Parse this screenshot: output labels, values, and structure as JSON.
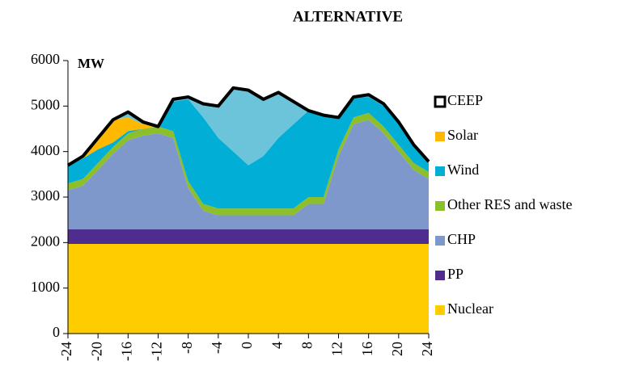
{
  "chart_data": {
    "type": "stacked_area",
    "title": "ALTERNATIVE",
    "ylabel": "MW",
    "x": [
      -24,
      -22,
      -20,
      -18,
      -16,
      -14,
      -12,
      -10,
      -8,
      -6,
      -4,
      -2,
      0,
      2,
      4,
      6,
      8,
      10,
      12,
      14,
      16,
      18,
      20,
      22,
      24
    ],
    "xlim": [
      -24,
      24
    ],
    "xticks": [
      -24,
      -20,
      -16,
      -12,
      -8,
      -4,
      0,
      4,
      8,
      12,
      16,
      20,
      24
    ],
    "ylim": [
      0,
      6000
    ],
    "yticks": [
      0,
      1000,
      2000,
      3000,
      4000,
      5000,
      6000
    ],
    "series": [
      {
        "name": "Nuclear",
        "color": "#ffcc00",
        "values": [
          1970,
          1970,
          1970,
          1970,
          1970,
          1970,
          1970,
          1970,
          1970,
          1970,
          1970,
          1970,
          1970,
          1970,
          1970,
          1970,
          1970,
          1970,
          1970,
          1970,
          1970,
          1970,
          1970,
          1970,
          1970
        ]
      },
      {
        "name": "PP",
        "color": "#4f2d8f",
        "values": [
          320,
          320,
          320,
          320,
          320,
          320,
          320,
          320,
          320,
          320,
          320,
          320,
          320,
          320,
          320,
          320,
          320,
          320,
          320,
          320,
          320,
          320,
          320,
          320,
          320
        ]
      },
      {
        "name": "CHP",
        "color": "#7f98cc",
        "values": [
          860,
          960,
          1310,
          1660,
          1960,
          2060,
          2110,
          2010,
          910,
          410,
          310,
          310,
          310,
          310,
          310,
          310,
          560,
          560,
          1610,
          2310,
          2410,
          2110,
          1710,
          1310,
          1110
        ]
      },
      {
        "name": "Other RES and waste",
        "color": "#8dbf2a",
        "values": [
          150,
          150,
          150,
          150,
          150,
          150,
          150,
          150,
          150,
          150,
          150,
          150,
          150,
          150,
          150,
          150,
          150,
          150,
          150,
          150,
          150,
          150,
          150,
          150,
          150
        ]
      },
      {
        "name": "Wind",
        "color": "#00aed6",
        "values": [
          400,
          450,
          300,
          100,
          50,
          0,
          0,
          650,
          1800,
          1900,
          1550,
          1250,
          950,
          1150,
          1550,
          1850,
          1900,
          1800,
          700,
          450,
          350,
          450,
          500,
          400,
          230
        ]
      },
      {
        "name": "Solar",
        "color": "#ffb800",
        "values": [
          0,
          0,
          250,
          500,
          300,
          100,
          0,
          0,
          0,
          0,
          0,
          0,
          0,
          0,
          0,
          0,
          0,
          0,
          0,
          0,
          0,
          0,
          0,
          0,
          0
        ]
      },
      {
        "name": "CEEP",
        "color": "#ffffff",
        "edge": "#000000",
        "area": "#6cc4da",
        "values": [
          0,
          50,
          0,
          0,
          120,
          50,
          0,
          50,
          50,
          300,
          700,
          1400,
          1650,
          1250,
          1000,
          500,
          0,
          0,
          0,
          0,
          50,
          50,
          0,
          0,
          0
        ]
      }
    ]
  }
}
